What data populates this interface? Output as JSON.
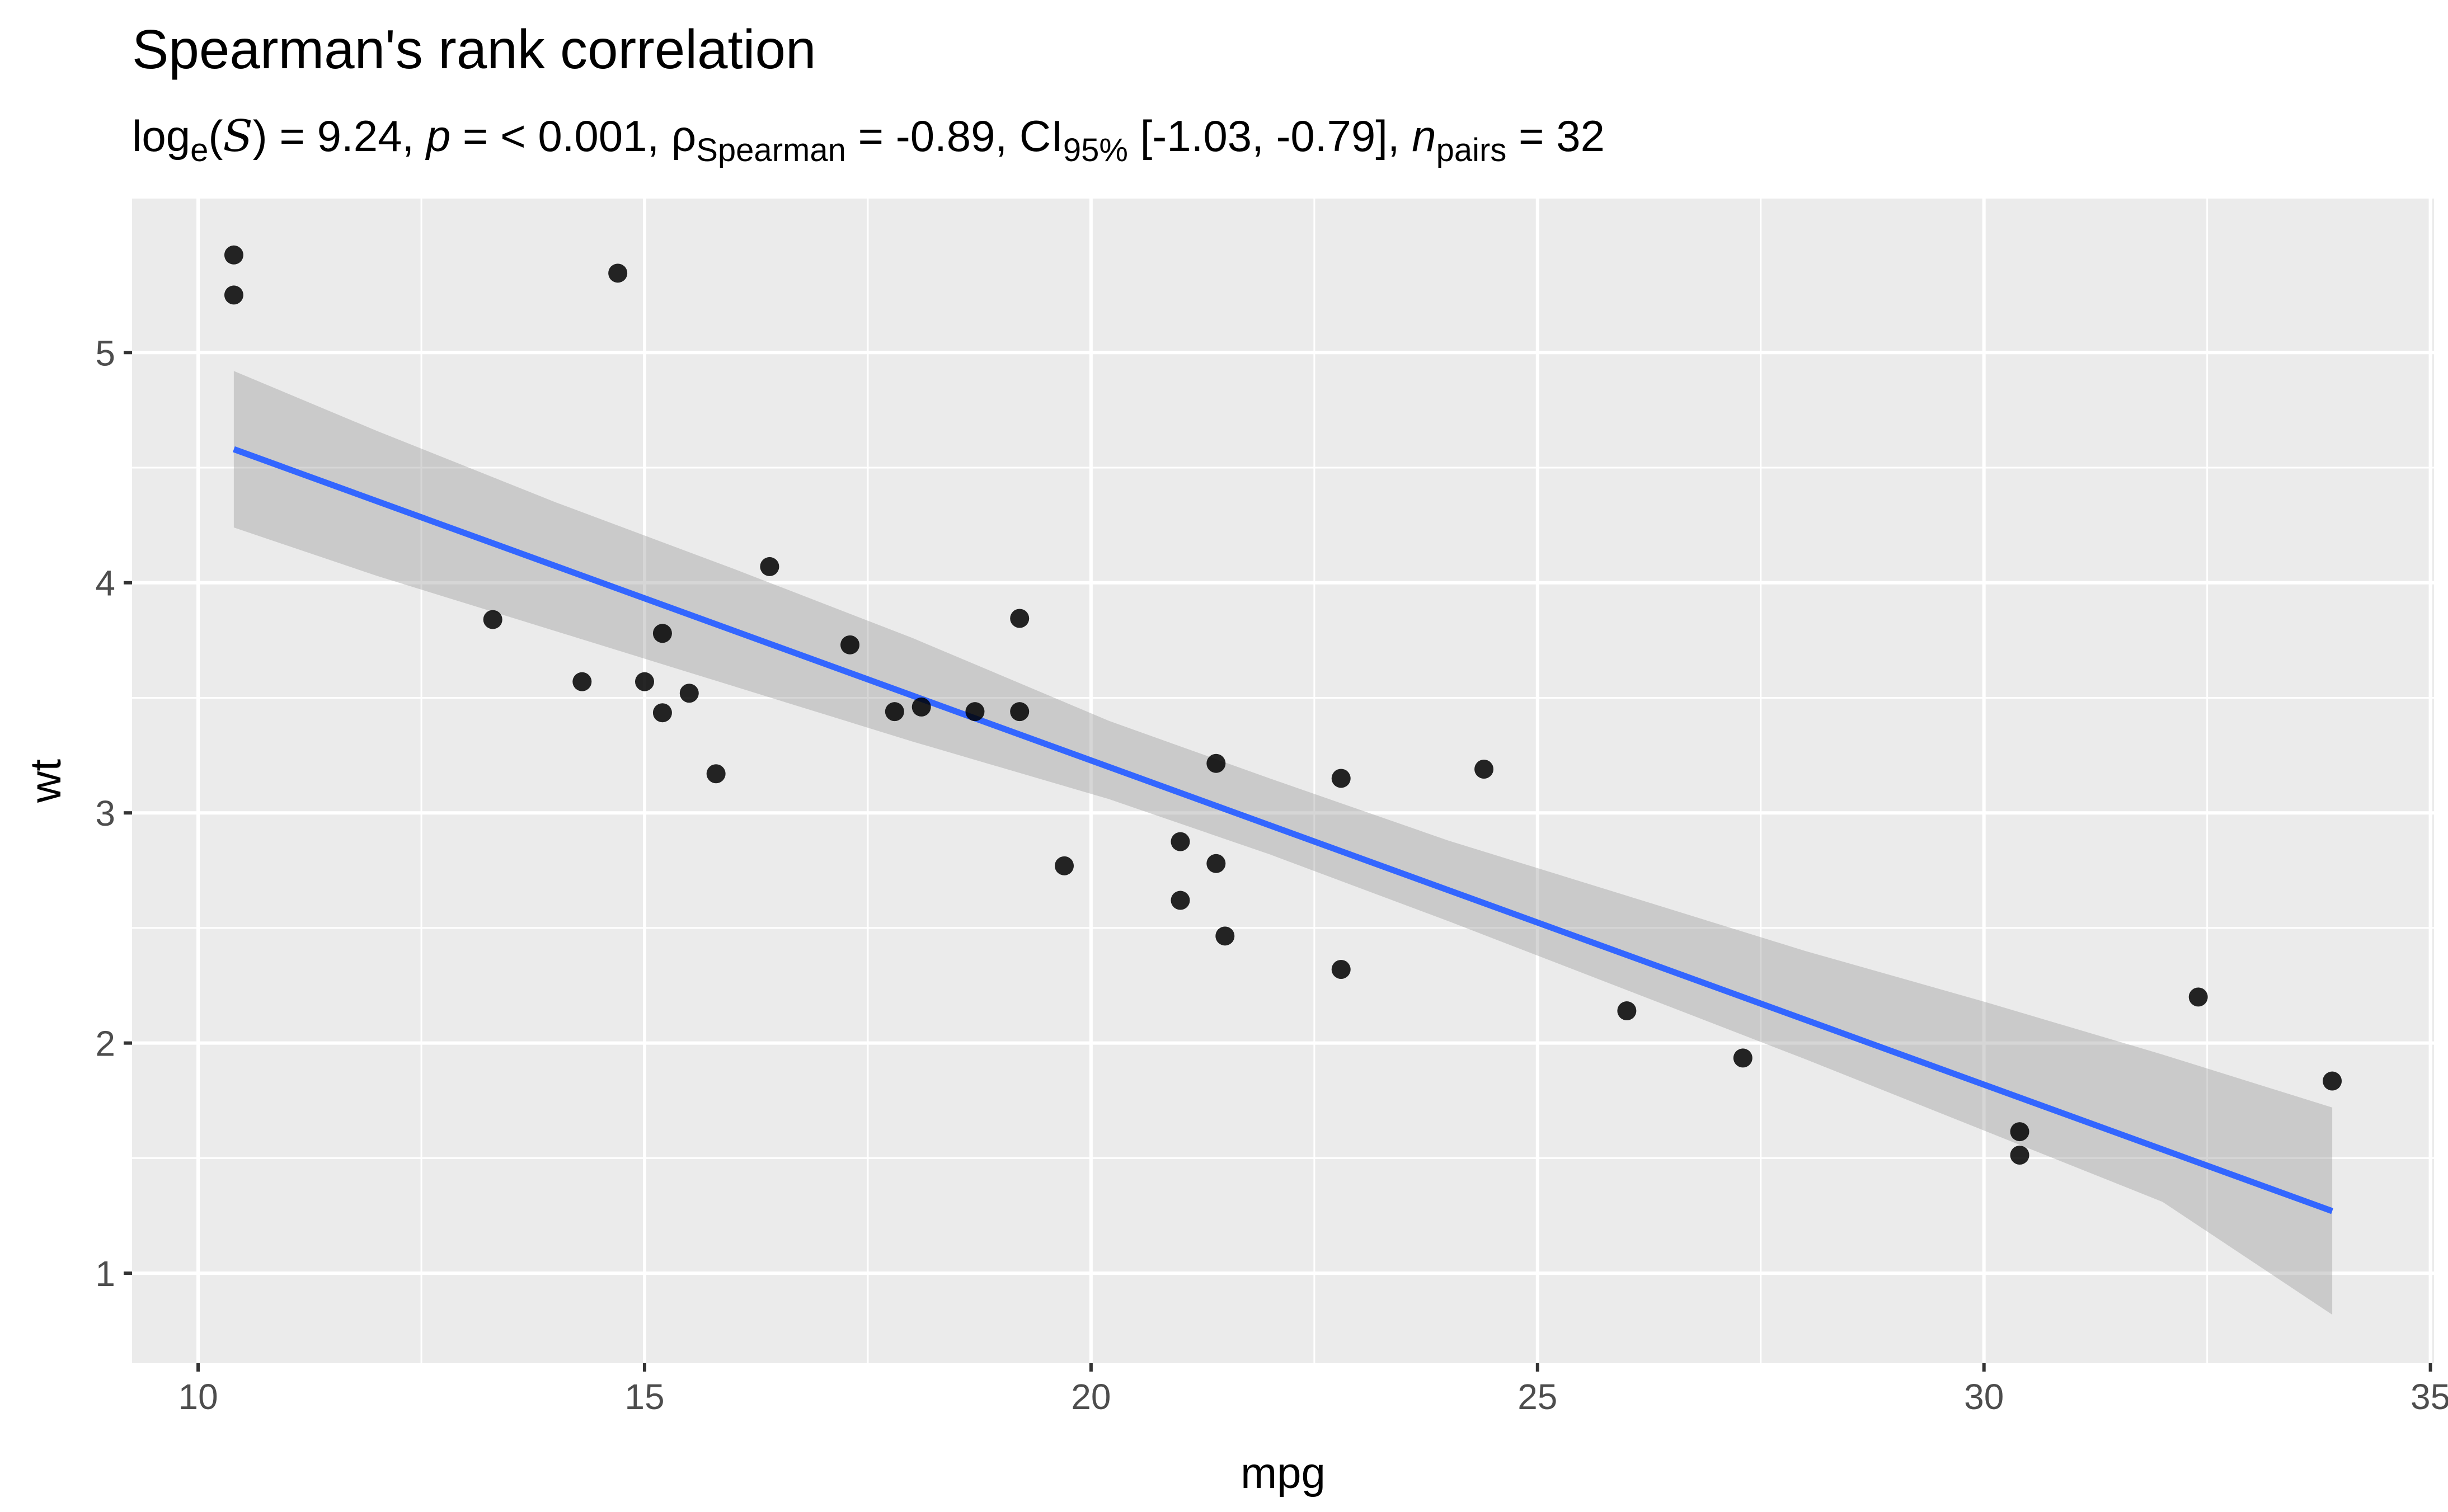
{
  "chart_data": {
    "type": "scatter",
    "title": "Spearman's rank correlation",
    "subtitle": {
      "log_label": "log",
      "log_sub": "e",
      "stat_symbol": "S",
      "stat_value": " = 9.24, ",
      "p_symbol": "p",
      "p_value": " = < 0.001, ",
      "rho_symbol": "ρ",
      "rho_sub": "Spearman",
      "rho_value": " = -0.89, ",
      "ci_label": "CI",
      "ci_sub": "95%",
      "ci_value": " [-1.03, -0.79], ",
      "n_symbol": "n",
      "n_sub": "pairs",
      "n_value": " = 32"
    },
    "xlabel": "mpg",
    "ylabel": "wt",
    "xlim": [
      9.26,
      35.04
    ],
    "ylim": [
      0.609,
      5.669
    ],
    "x_ticks": [
      10,
      15,
      20,
      25,
      30,
      35
    ],
    "x_tick_labels": [
      "10",
      "15",
      "20",
      "25",
      "30",
      "35"
    ],
    "y_ticks": [
      1,
      2,
      3,
      4,
      5
    ],
    "y_tick_labels": [
      "1",
      "2",
      "3",
      "4",
      "5"
    ],
    "grid": true,
    "points": [
      {
        "x": 21.0,
        "y": 2.62
      },
      {
        "x": 21.0,
        "y": 2.875
      },
      {
        "x": 22.8,
        "y": 2.32
      },
      {
        "x": 21.4,
        "y": 3.215
      },
      {
        "x": 18.7,
        "y": 3.44
      },
      {
        "x": 18.1,
        "y": 3.46
      },
      {
        "x": 14.3,
        "y": 3.57
      },
      {
        "x": 24.4,
        "y": 3.19
      },
      {
        "x": 22.8,
        "y": 3.15
      },
      {
        "x": 19.2,
        "y": 3.44
      },
      {
        "x": 17.8,
        "y": 3.44
      },
      {
        "x": 16.4,
        "y": 4.07
      },
      {
        "x": 17.3,
        "y": 3.73
      },
      {
        "x": 15.2,
        "y": 3.78
      },
      {
        "x": 10.4,
        "y": 5.25
      },
      {
        "x": 10.4,
        "y": 5.424
      },
      {
        "x": 14.7,
        "y": 5.345
      },
      {
        "x": 32.4,
        "y": 2.2
      },
      {
        "x": 30.4,
        "y": 1.615
      },
      {
        "x": 33.9,
        "y": 1.835
      },
      {
        "x": 21.5,
        "y": 2.465
      },
      {
        "x": 15.5,
        "y": 3.52
      },
      {
        "x": 15.2,
        "y": 3.435
      },
      {
        "x": 13.3,
        "y": 3.84
      },
      {
        "x": 19.2,
        "y": 3.845
      },
      {
        "x": 27.3,
        "y": 1.935
      },
      {
        "x": 26.0,
        "y": 2.14
      },
      {
        "x": 30.4,
        "y": 1.513
      },
      {
        "x": 15.8,
        "y": 3.17
      },
      {
        "x": 19.7,
        "y": 2.77
      },
      {
        "x": 15.0,
        "y": 3.57
      },
      {
        "x": 21.4,
        "y": 2.78
      }
    ],
    "fit_line": {
      "x": [
        10.4,
        33.9
      ],
      "y": [
        4.58,
        1.27
      ]
    },
    "confidence_band": {
      "x": [
        10.4,
        12.0,
        14.0,
        16.0,
        18.0,
        20.2,
        22.0,
        24.0,
        26.0,
        28.0,
        30.0,
        32.0,
        33.9
      ],
      "upper": [
        4.92,
        4.66,
        4.35,
        4.06,
        3.76,
        3.4,
        3.15,
        2.88,
        2.64,
        2.4,
        2.18,
        1.95,
        1.72
      ],
      "lower": [
        4.24,
        4.03,
        3.79,
        3.55,
        3.31,
        3.06,
        2.82,
        2.53,
        2.23,
        1.93,
        1.62,
        1.31,
        0.82
      ]
    },
    "colors": {
      "panel_background": "#EBEBEB",
      "grid": "#FFFFFF",
      "points": "#000000",
      "fit_line": "#3366FF",
      "band": "#999999"
    }
  }
}
